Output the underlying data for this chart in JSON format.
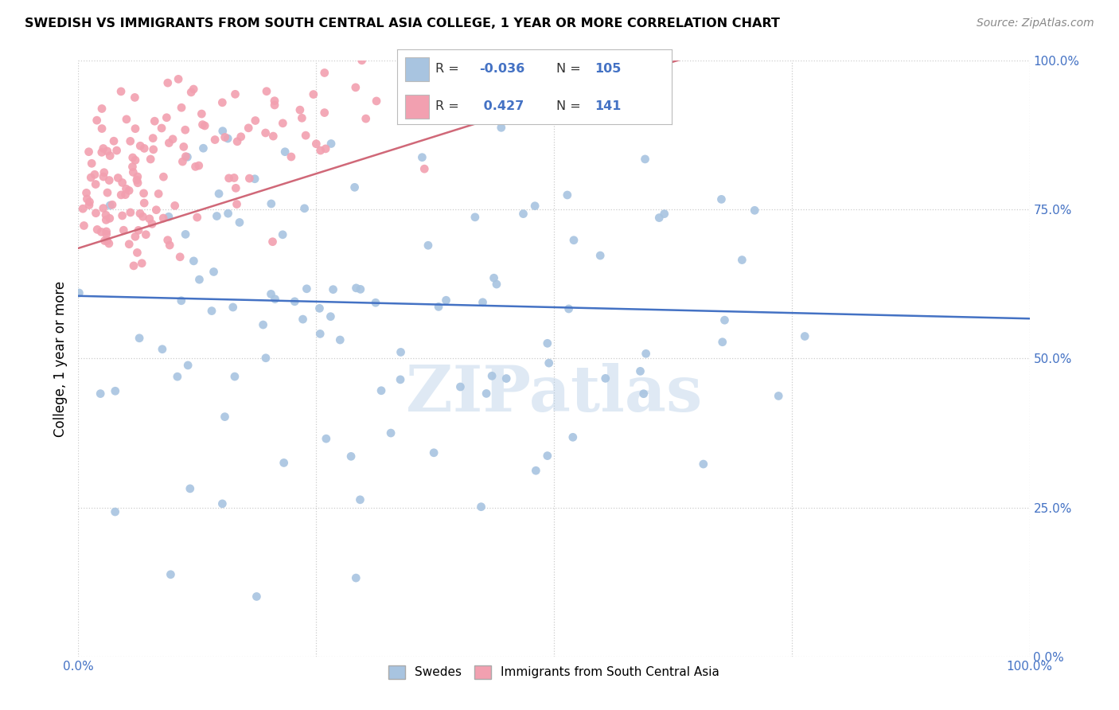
{
  "title": "SWEDISH VS IMMIGRANTS FROM SOUTH CENTRAL ASIA COLLEGE, 1 YEAR OR MORE CORRELATION CHART",
  "source": "Source: ZipAtlas.com",
  "ylabel": "College, 1 year or more",
  "watermark": "ZIPatlas",
  "color_blue": "#a8c4e0",
  "color_pink": "#f2a0b0",
  "line_color_blue": "#4472c4",
  "line_color_pink": "#d06878",
  "background": "#ffffff",
  "blue_R": -0.036,
  "blue_N": 105,
  "pink_R": 0.427,
  "pink_N": 141,
  "ytick_labels_right": [
    "0.0%",
    "25.0%",
    "50.0%",
    "75.0%",
    "100.0%"
  ]
}
